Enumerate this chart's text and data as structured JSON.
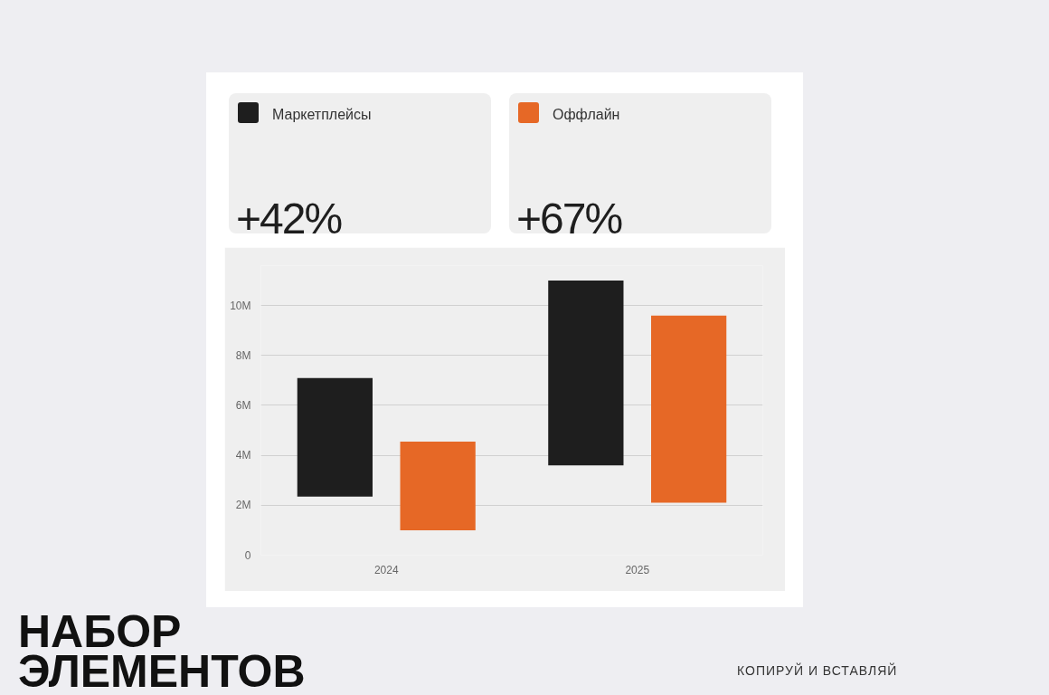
{
  "chart_data": {
    "type": "bar",
    "title": "НАБОР ЭЛЕМЕНТОВ",
    "categories": [
      "2024",
      "2025"
    ],
    "series": [
      {
        "name": "Маркетплейсы",
        "color": "#1e1e1e",
        "values": [
          4.75,
          7.4
        ],
        "base": [
          2.35,
          3.6
        ]
      },
      {
        "name": "Оффлайн",
        "color": "#e66826",
        "values": [
          3.55,
          7.5
        ],
        "base": [
          1.0,
          2.1
        ]
      }
    ],
    "ylim": [
      0,
      11.6
    ],
    "yticks": [
      {
        "value": 0,
        "label": "0"
      },
      {
        "value": 2,
        "label": "2M"
      },
      {
        "value": 4,
        "label": "4M"
      },
      {
        "value": 6,
        "label": "6M"
      },
      {
        "value": 8,
        "label": "8M"
      },
      {
        "value": 10,
        "label": "10M"
      }
    ],
    "grid": "y",
    "legend": "top",
    "annotations": [
      "+42%",
      "+67%",
      "КОПИРУЙ И ВСТАВЛЯЙ"
    ]
  }
}
